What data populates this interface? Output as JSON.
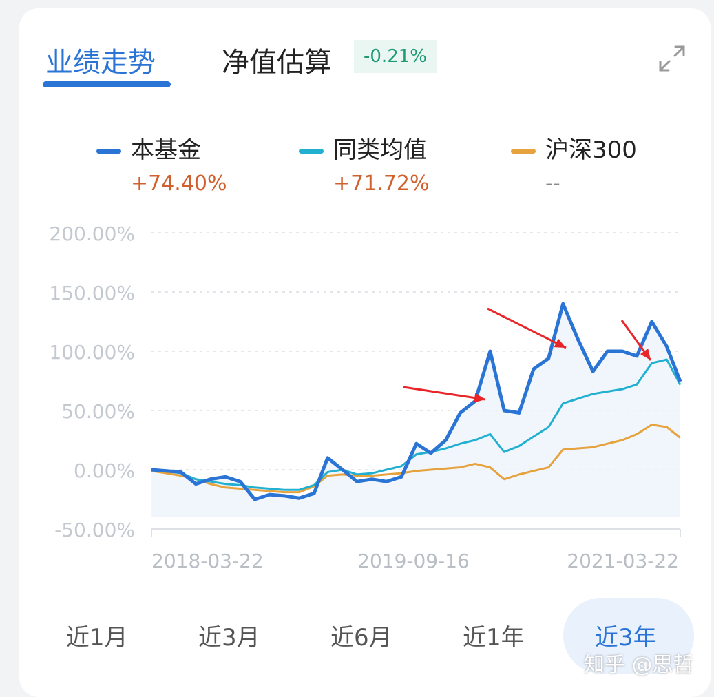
{
  "tabs": {
    "performance": "业绩走势",
    "nav_estimate": "净值估算",
    "nav_change": "-0.21%"
  },
  "icons": {
    "expand": "expand-icon"
  },
  "legend": [
    {
      "name": "本基金",
      "value": "+74.40%",
      "color": "#2a74d5"
    },
    {
      "name": "同类均值",
      "value": "+71.72%",
      "color": "#22b0d0"
    },
    {
      "name": "沪深300",
      "value": "--",
      "color": "#e6a23c"
    }
  ],
  "periods": [
    "近1月",
    "近3月",
    "近6月",
    "近1年",
    "近3年"
  ],
  "selected_period": "近3年",
  "watermark": "知乎 @思哲",
  "chart_data": {
    "type": "line",
    "ylim": [
      -50,
      200
    ],
    "yticks": [
      "200.00%",
      "150.00%",
      "100.00%",
      "50.00%",
      "0.00%",
      "-50.00%"
    ],
    "ytick_values": [
      200,
      150,
      100,
      50,
      0,
      -50
    ],
    "xlim": [
      "2018-03-22",
      "2021-03-22"
    ],
    "xticks": [
      "2018-03-22",
      "2019-09-16",
      "2021-03-22"
    ],
    "grid": true,
    "x": [
      "2018-03-22",
      "2018-04-22",
      "2018-05-22",
      "2018-06-22",
      "2018-07-22",
      "2018-08-22",
      "2018-09-22",
      "2018-10-22",
      "2018-11-22",
      "2018-12-22",
      "2019-01-22",
      "2019-02-22",
      "2019-03-22",
      "2019-04-22",
      "2019-05-22",
      "2019-06-22",
      "2019-07-22",
      "2019-08-22",
      "2019-09-22",
      "2019-10-22",
      "2019-11-22",
      "2019-12-22",
      "2020-01-22",
      "2020-02-22",
      "2020-03-22",
      "2020-04-22",
      "2020-05-22",
      "2020-06-22",
      "2020-07-22",
      "2020-08-22",
      "2020-09-22",
      "2020-10-22",
      "2020-11-22",
      "2020-12-22",
      "2021-01-22",
      "2021-02-22",
      "2021-03-22"
    ],
    "series": [
      {
        "name": "本基金",
        "color": "#2a74d5",
        "values": [
          0,
          -1,
          -2,
          -12,
          -8,
          -6,
          -10,
          -25,
          -21,
          -22,
          -24,
          -20,
          10,
          0,
          -10,
          -8,
          -10,
          -6,
          22,
          14,
          25,
          48,
          58,
          100,
          50,
          48,
          85,
          94,
          140,
          110,
          83,
          100,
          100,
          96,
          125,
          104,
          74.4
        ]
      },
      {
        "name": "同类均值",
        "color": "#22b0d0",
        "values": [
          0,
          -1,
          -3,
          -8,
          -10,
          -12,
          -13,
          -15,
          -16,
          -17,
          -17,
          -13,
          -2,
          0,
          -4,
          -3,
          0,
          3,
          13,
          15,
          18,
          22,
          25,
          30,
          15,
          20,
          28,
          36,
          56,
          60,
          64,
          66,
          68,
          72,
          90,
          93,
          71.72
        ]
      },
      {
        "name": "沪深300",
        "color": "#e6a23c",
        "values": [
          -1,
          -3,
          -5,
          -8,
          -12,
          -15,
          -16,
          -17,
          -18,
          -19,
          -19,
          -14,
          -5,
          -4,
          -5,
          -5,
          -4,
          -3,
          -1,
          0,
          1,
          2,
          5,
          2,
          -8,
          -4,
          -1,
          2,
          17,
          18,
          19,
          22,
          25,
          30,
          38,
          36,
          27
        ]
      }
    ],
    "annotations": {
      "type": "red-arrows",
      "count": 3,
      "color": "#e8262a"
    }
  }
}
